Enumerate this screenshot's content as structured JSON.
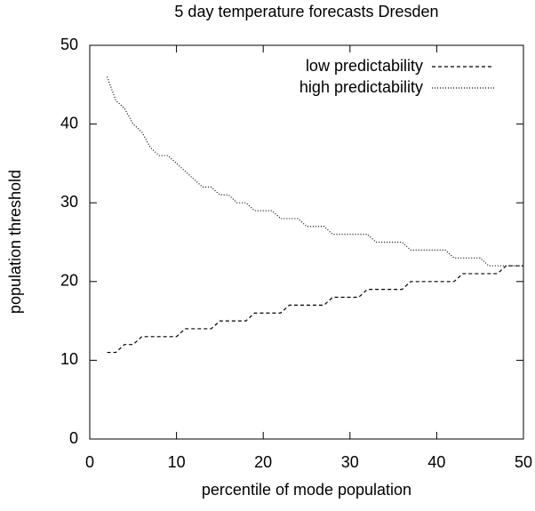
{
  "chart_data": {
    "type": "line",
    "title": "5 day temperature forecasts Dresden",
    "xlabel": "percentile of mode population",
    "ylabel": "population threshold",
    "x": [
      2,
      3,
      4,
      5,
      6,
      7,
      8,
      9,
      10,
      11,
      12,
      13,
      14,
      15,
      16,
      17,
      18,
      19,
      20,
      21,
      22,
      23,
      24,
      25,
      26,
      27,
      28,
      29,
      30,
      31,
      32,
      33,
      34,
      35,
      36,
      37,
      38,
      39,
      40,
      41,
      42,
      43,
      44,
      45,
      46,
      47,
      48,
      49,
      50
    ],
    "series": [
      {
        "name": "low predictability",
        "color": "#000000",
        "dash": "4,3",
        "values": [
          11,
          11,
          12,
          12,
          13,
          13,
          13,
          13,
          13,
          14,
          14,
          14,
          14,
          15,
          15,
          15,
          15,
          16,
          16,
          16,
          16,
          17,
          17,
          17,
          17,
          17,
          18,
          18,
          18,
          18,
          19,
          19,
          19,
          19,
          19,
          20,
          20,
          20,
          20,
          20,
          20,
          21,
          21,
          21,
          21,
          21,
          22,
          22,
          22
        ]
      },
      {
        "name": "high predictability",
        "color": "#000000",
        "dash": "1,2",
        "values": [
          46,
          43,
          42,
          40,
          39,
          37,
          36,
          36,
          35,
          34,
          33,
          32,
          32,
          31,
          31,
          30,
          30,
          29,
          29,
          29,
          28,
          28,
          28,
          27,
          27,
          27,
          26,
          26,
          26,
          26,
          26,
          25,
          25,
          25,
          25,
          24,
          24,
          24,
          24,
          24,
          23,
          23,
          23,
          23,
          22,
          22,
          22,
          22,
          22
        ]
      }
    ],
    "xlim": [
      0,
      50
    ],
    "ylim": [
      0,
      50
    ],
    "xticks": [
      0,
      10,
      20,
      30,
      40,
      50
    ],
    "yticks": [
      0,
      10,
      20,
      30,
      40,
      50
    ],
    "legend": "upper right"
  }
}
